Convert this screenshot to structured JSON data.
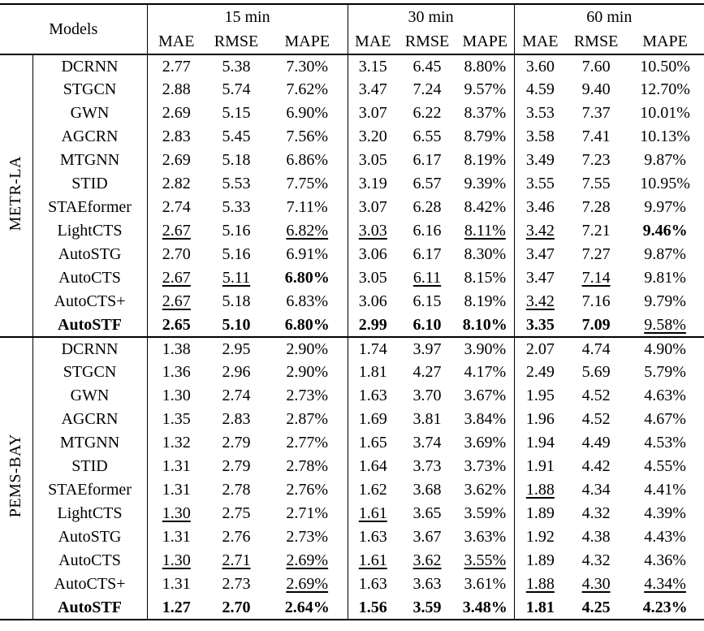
{
  "colors": {
    "text": "#000000",
    "background": "#ffffff",
    "rule": "#000000"
  },
  "header": {
    "models_label": "Models",
    "groups": [
      {
        "label": "15 min",
        "metrics": [
          "MAE",
          "RMSE",
          "MAPE"
        ]
      },
      {
        "label": "30 min",
        "metrics": [
          "MAE",
          "RMSE",
          "MAPE"
        ]
      },
      {
        "label": "60 min",
        "metrics": [
          "MAE",
          "RMSE",
          "MAPE"
        ]
      }
    ]
  },
  "style_legend": {
    "n": "normal",
    "u": "underline-second-best",
    "b": "bold-best"
  },
  "sections": [
    {
      "dataset": "METR-LA",
      "rows": [
        {
          "model": "DCRNN",
          "bold_model": false,
          "values": [
            "2.77",
            "5.38",
            "7.30%",
            "3.15",
            "6.45",
            "8.80%",
            "3.60",
            "7.60",
            "10.50%"
          ],
          "styles": [
            "n",
            "n",
            "n",
            "n",
            "n",
            "n",
            "n",
            "n",
            "n"
          ]
        },
        {
          "model": "STGCN",
          "bold_model": false,
          "values": [
            "2.88",
            "5.74",
            "7.62%",
            "3.47",
            "7.24",
            "9.57%",
            "4.59",
            "9.40",
            "12.70%"
          ],
          "styles": [
            "n",
            "n",
            "n",
            "n",
            "n",
            "n",
            "n",
            "n",
            "n"
          ]
        },
        {
          "model": "GWN",
          "bold_model": false,
          "values": [
            "2.69",
            "5.15",
            "6.90%",
            "3.07",
            "6.22",
            "8.37%",
            "3.53",
            "7.37",
            "10.01%"
          ],
          "styles": [
            "n",
            "n",
            "n",
            "n",
            "n",
            "n",
            "n",
            "n",
            "n"
          ]
        },
        {
          "model": "AGCRN",
          "bold_model": false,
          "values": [
            "2.83",
            "5.45",
            "7.56%",
            "3.20",
            "6.55",
            "8.79%",
            "3.58",
            "7.41",
            "10.13%"
          ],
          "styles": [
            "n",
            "n",
            "n",
            "n",
            "n",
            "n",
            "n",
            "n",
            "n"
          ]
        },
        {
          "model": "MTGNN",
          "bold_model": false,
          "values": [
            "2.69",
            "5.18",
            "6.86%",
            "3.05",
            "6.17",
            "8.19%",
            "3.49",
            "7.23",
            "9.87%"
          ],
          "styles": [
            "n",
            "n",
            "n",
            "n",
            "n",
            "n",
            "n",
            "n",
            "n"
          ]
        },
        {
          "model": "STID",
          "bold_model": false,
          "values": [
            "2.82",
            "5.53",
            "7.75%",
            "3.19",
            "6.57",
            "9.39%",
            "3.55",
            "7.55",
            "10.95%"
          ],
          "styles": [
            "n",
            "n",
            "n",
            "n",
            "n",
            "n",
            "n",
            "n",
            "n"
          ]
        },
        {
          "model": "STAEformer",
          "bold_model": false,
          "values": [
            "2.74",
            "5.33",
            "7.11%",
            "3.07",
            "6.28",
            "8.42%",
            "3.46",
            "7.28",
            "9.97%"
          ],
          "styles": [
            "n",
            "n",
            "n",
            "n",
            "n",
            "n",
            "n",
            "n",
            "n"
          ]
        },
        {
          "model": "LightCTS",
          "bold_model": false,
          "values": [
            "2.67",
            "5.16",
            "6.82%",
            "3.03",
            "6.16",
            "8.11%",
            "3.42",
            "7.21",
            "9.46%"
          ],
          "styles": [
            "u",
            "n",
            "u",
            "u",
            "n",
            "u",
            "u",
            "n",
            "b"
          ]
        },
        {
          "model": "AutoSTG",
          "bold_model": false,
          "values": [
            "2.70",
            "5.16",
            "6.91%",
            "3.06",
            "6.17",
            "8.30%",
            "3.47",
            "7.27",
            "9.87%"
          ],
          "styles": [
            "n",
            "n",
            "n",
            "n",
            "n",
            "n",
            "n",
            "n",
            "n"
          ]
        },
        {
          "model": "AutoCTS",
          "bold_model": false,
          "values": [
            "2.67",
            "5.11",
            "6.80%",
            "3.05",
            "6.11",
            "8.15%",
            "3.47",
            "7.14",
            "9.81%"
          ],
          "styles": [
            "u",
            "u",
            "b",
            "n",
            "u",
            "n",
            "n",
            "u",
            "n"
          ]
        },
        {
          "model": "AutoCTS+",
          "bold_model": false,
          "values": [
            "2.67",
            "5.18",
            "6.83%",
            "3.06",
            "6.15",
            "8.19%",
            "3.42",
            "7.16",
            "9.79%"
          ],
          "styles": [
            "u",
            "n",
            "n",
            "n",
            "n",
            "n",
            "u",
            "n",
            "n"
          ]
        },
        {
          "model": "AutoSTF",
          "bold_model": true,
          "values": [
            "2.65",
            "5.10",
            "6.80%",
            "2.99",
            "6.10",
            "8.10%",
            "3.35",
            "7.09",
            "9.58%"
          ],
          "styles": [
            "b",
            "b",
            "b",
            "b",
            "b",
            "b",
            "b",
            "b",
            "u"
          ]
        }
      ]
    },
    {
      "dataset": "PEMS-BAY",
      "rows": [
        {
          "model": "DCRNN",
          "bold_model": false,
          "values": [
            "1.38",
            "2.95",
            "2.90%",
            "1.74",
            "3.97",
            "3.90%",
            "2.07",
            "4.74",
            "4.90%"
          ],
          "styles": [
            "n",
            "n",
            "n",
            "n",
            "n",
            "n",
            "n",
            "n",
            "n"
          ]
        },
        {
          "model": "STGCN",
          "bold_model": false,
          "values": [
            "1.36",
            "2.96",
            "2.90%",
            "1.81",
            "4.27",
            "4.17%",
            "2.49",
            "5.69",
            "5.79%"
          ],
          "styles": [
            "n",
            "n",
            "n",
            "n",
            "n",
            "n",
            "n",
            "n",
            "n"
          ]
        },
        {
          "model": "GWN",
          "bold_model": false,
          "values": [
            "1.30",
            "2.74",
            "2.73%",
            "1.63",
            "3.70",
            "3.67%",
            "1.95",
            "4.52",
            "4.63%"
          ],
          "styles": [
            "n",
            "n",
            "n",
            "n",
            "n",
            "n",
            "n",
            "n",
            "n"
          ]
        },
        {
          "model": "AGCRN",
          "bold_model": false,
          "values": [
            "1.35",
            "2.83",
            "2.87%",
            "1.69",
            "3.81",
            "3.84%",
            "1.96",
            "4.52",
            "4.67%"
          ],
          "styles": [
            "n",
            "n",
            "n",
            "n",
            "n",
            "n",
            "n",
            "n",
            "n"
          ]
        },
        {
          "model": "MTGNN",
          "bold_model": false,
          "values": [
            "1.32",
            "2.79",
            "2.77%",
            "1.65",
            "3.74",
            "3.69%",
            "1.94",
            "4.49",
            "4.53%"
          ],
          "styles": [
            "n",
            "n",
            "n",
            "n",
            "n",
            "n",
            "n",
            "n",
            "n"
          ]
        },
        {
          "model": "STID",
          "bold_model": false,
          "values": [
            "1.31",
            "2.79",
            "2.78%",
            "1.64",
            "3.73",
            "3.73%",
            "1.91",
            "4.42",
            "4.55%"
          ],
          "styles": [
            "n",
            "n",
            "n",
            "n",
            "n",
            "n",
            "n",
            "n",
            "n"
          ]
        },
        {
          "model": "STAEformer",
          "bold_model": false,
          "values": [
            "1.31",
            "2.78",
            "2.76%",
            "1.62",
            "3.68",
            "3.62%",
            "1.88",
            "4.34",
            "4.41%"
          ],
          "styles": [
            "n",
            "n",
            "n",
            "n",
            "n",
            "n",
            "u",
            "n",
            "n"
          ]
        },
        {
          "model": "LightCTS",
          "bold_model": false,
          "values": [
            "1.30",
            "2.75",
            "2.71%",
            "1.61",
            "3.65",
            "3.59%",
            "1.89",
            "4.32",
            "4.39%"
          ],
          "styles": [
            "u",
            "n",
            "n",
            "u",
            "n",
            "n",
            "n",
            "n",
            "n"
          ]
        },
        {
          "model": "AutoSTG",
          "bold_model": false,
          "values": [
            "1.31",
            "2.76",
            "2.73%",
            "1.63",
            "3.67",
            "3.63%",
            "1.92",
            "4.38",
            "4.43%"
          ],
          "styles": [
            "n",
            "n",
            "n",
            "n",
            "n",
            "n",
            "n",
            "n",
            "n"
          ]
        },
        {
          "model": "AutoCTS",
          "bold_model": false,
          "values": [
            "1.30",
            "2.71",
            "2.69%",
            "1.61",
            "3.62",
            "3.55%",
            "1.89",
            "4.32",
            "4.36%"
          ],
          "styles": [
            "u",
            "u",
            "u",
            "u",
            "u",
            "u",
            "n",
            "n",
            "n"
          ]
        },
        {
          "model": "AutoCTS+",
          "bold_model": false,
          "values": [
            "1.31",
            "2.73",
            "2.69%",
            "1.63",
            "3.63",
            "3.61%",
            "1.88",
            "4.30",
            "4.34%"
          ],
          "styles": [
            "n",
            "n",
            "u",
            "n",
            "n",
            "n",
            "u",
            "u",
            "u"
          ]
        },
        {
          "model": "AutoSTF",
          "bold_model": true,
          "values": [
            "1.27",
            "2.70",
            "2.64%",
            "1.56",
            "3.59",
            "3.48%",
            "1.81",
            "4.25",
            "4.23%"
          ],
          "styles": [
            "b",
            "b",
            "b",
            "b",
            "b",
            "b",
            "b",
            "b",
            "b"
          ]
        }
      ]
    }
  ]
}
